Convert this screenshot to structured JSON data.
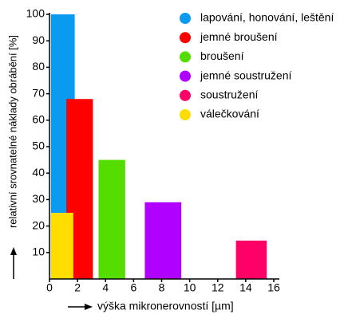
{
  "chart_data": {
    "type": "range-bar",
    "y_label": "relativní srovnatelné náklady obrábění [%]",
    "x_label": "výška mikronerovností [µm]",
    "xlim": [
      0,
      16
    ],
    "xticks": [
      0,
      2,
      4,
      6,
      8,
      10,
      12,
      14,
      16
    ],
    "ylim": [
      0,
      100
    ],
    "yticks": [
      10,
      20,
      30,
      40,
      50,
      60,
      70,
      80,
      90,
      100
    ],
    "series": [
      {
        "name": "lapování, honování, leštění",
        "color": "#0a9bf0",
        "bins": [
          0.1,
          1.8
        ],
        "values": [
          100
        ]
      },
      {
        "name": "jemné broušení",
        "color": "#ff0000",
        "bins": [
          1.2,
          3.1
        ],
        "values": [
          68
        ]
      },
      {
        "name": "broušení",
        "color": "#55dd00",
        "bins": [
          3.5,
          5.4
        ],
        "values": [
          45
        ]
      },
      {
        "name": "jemné soustružení",
        "color": "#b000ff",
        "bins": [
          6.8,
          9.4
        ],
        "values": [
          29
        ]
      },
      {
        "name": "soustružení",
        "color": "#ff0066",
        "bins": [
          13.3,
          15.5
        ],
        "values": [
          14.5
        ]
      },
      {
        "name": "válečkování",
        "color": "#ffdd00",
        "bins": [
          0.1,
          1.7
        ],
        "values": [
          25
        ]
      }
    ]
  }
}
